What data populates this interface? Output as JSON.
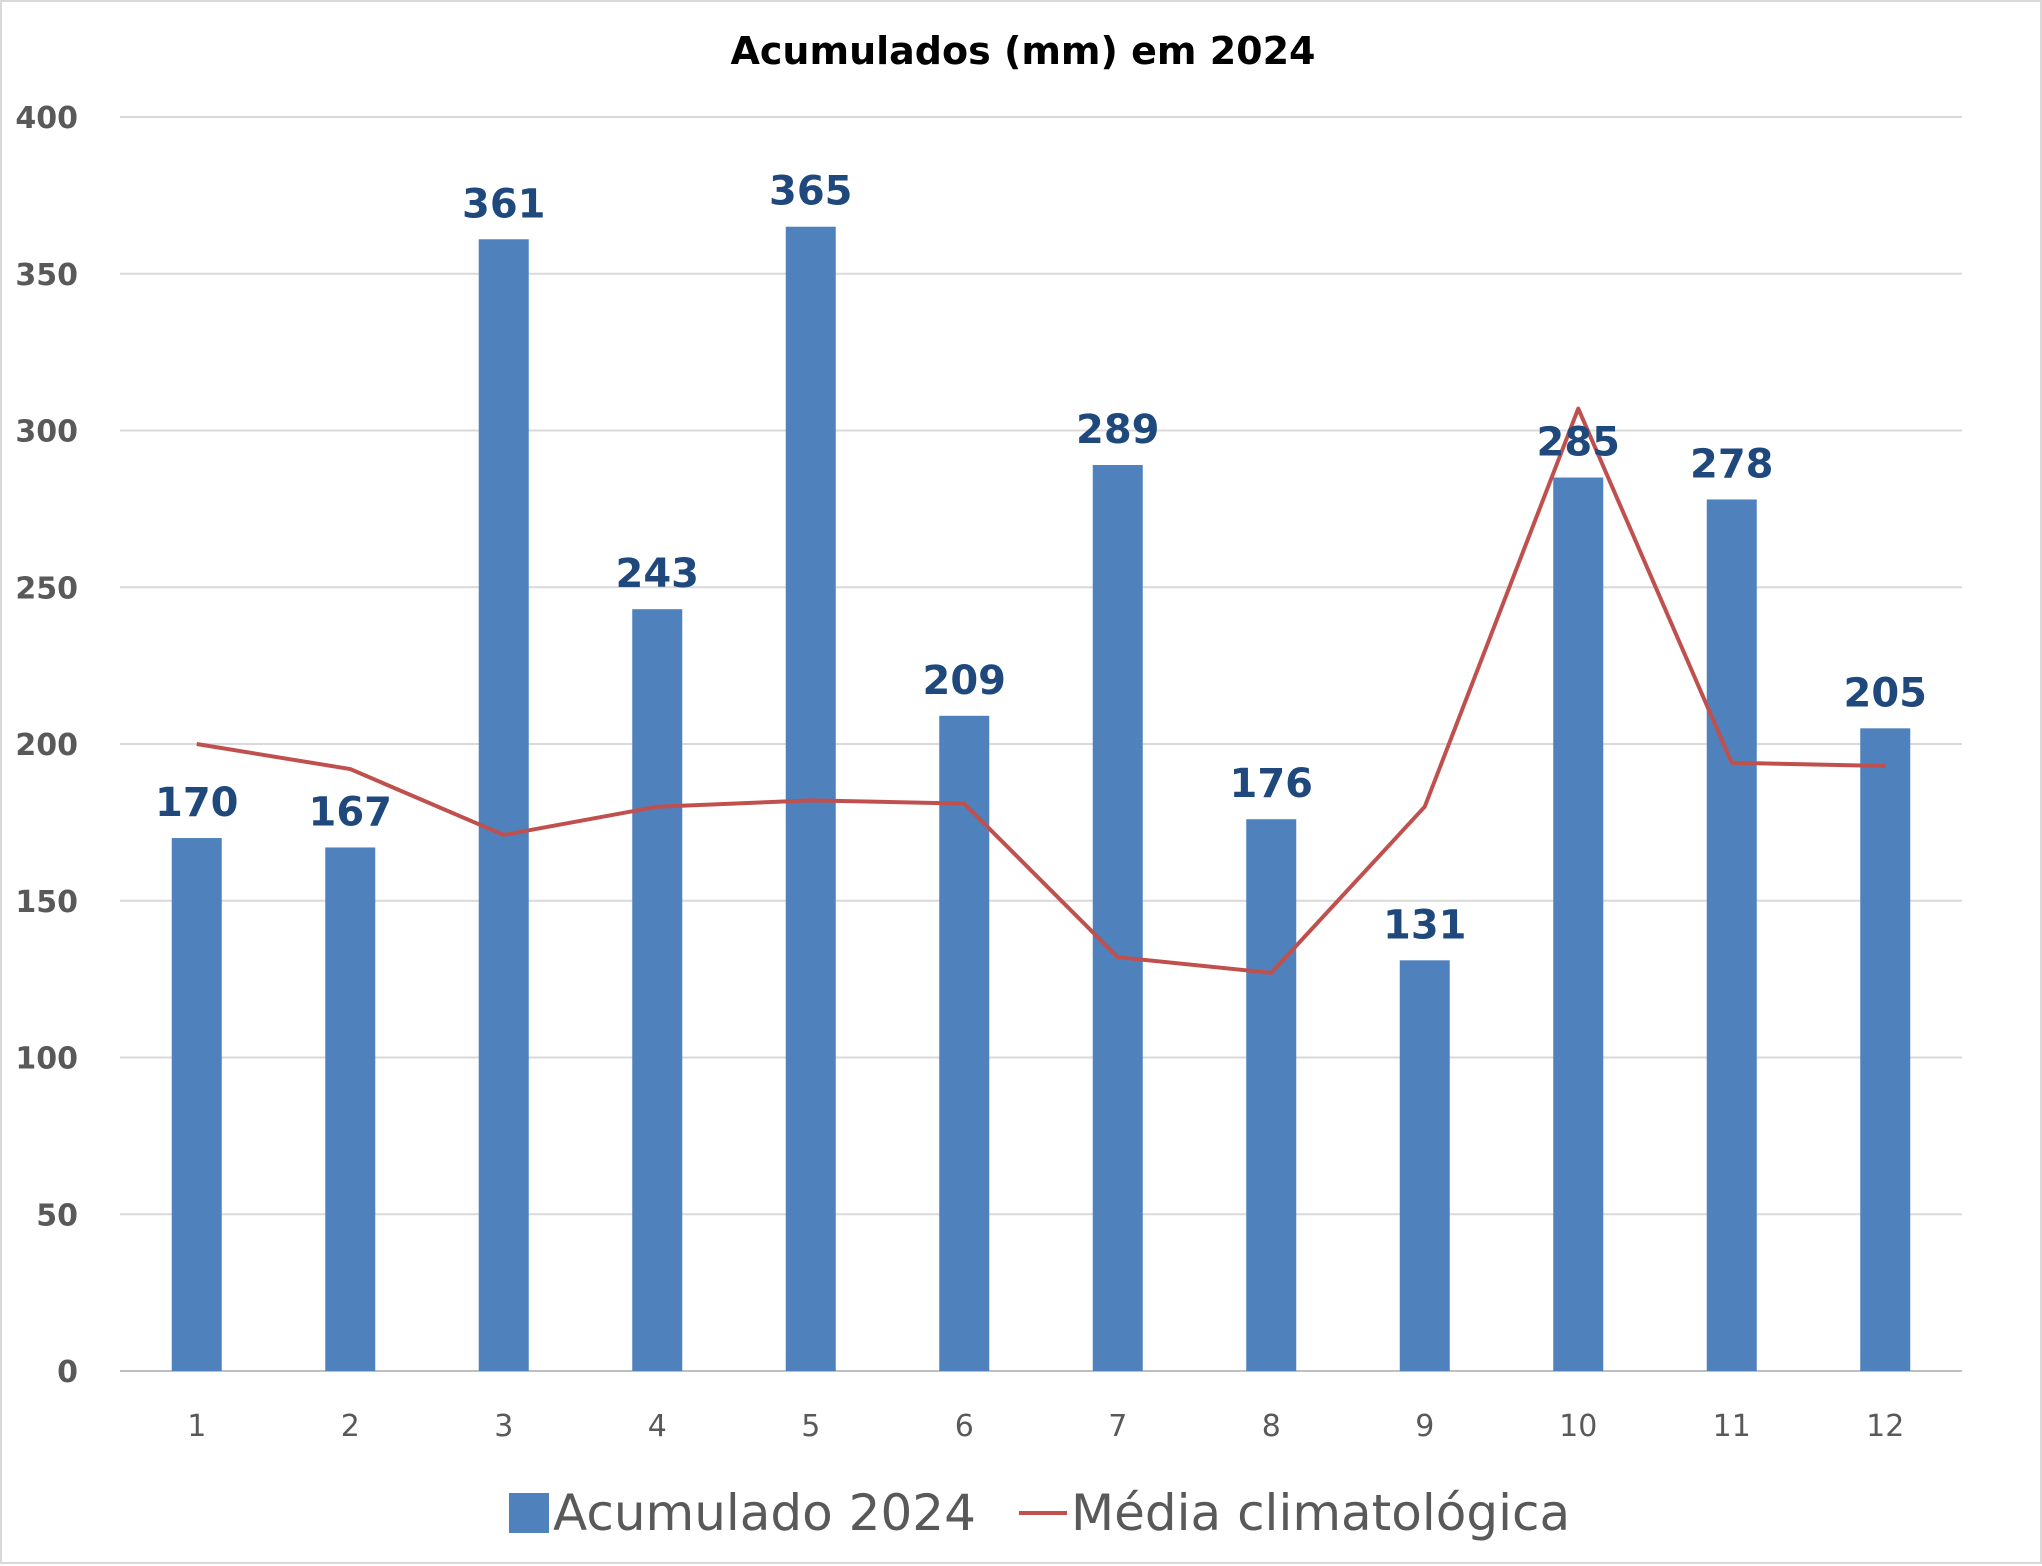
{
  "chart_data": {
    "type": "bar",
    "title": "Acumulados (mm) em 2024",
    "categories": [
      "1",
      "2",
      "3",
      "4",
      "5",
      "6",
      "7",
      "8",
      "9",
      "10",
      "11",
      "12"
    ],
    "series": [
      {
        "name": "Acumulado 2024",
        "type": "bar",
        "color": "#4f81bd",
        "values": [
          170,
          167,
          361,
          243,
          365,
          209,
          289,
          176,
          131,
          285,
          278,
          205
        ]
      },
      {
        "name": "Média climatológica",
        "type": "line",
        "color": "#c0504d",
        "values": [
          200,
          192,
          171,
          180,
          182,
          181,
          132,
          127,
          180,
          307,
          194,
          193
        ]
      }
    ],
    "ylim": [
      0,
      400
    ],
    "yticks": [
      "0",
      "50",
      "100",
      "150",
      "200",
      "250",
      "300",
      "350",
      "400"
    ],
    "grid": true,
    "legend_position": "bottom"
  }
}
